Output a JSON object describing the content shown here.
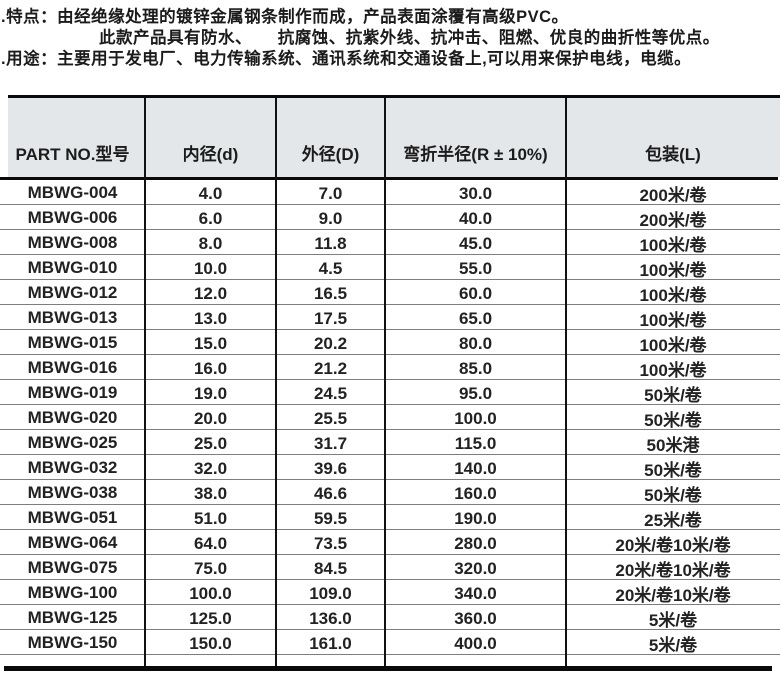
{
  "intro": {
    "line1": ".特点：由经绝缘处理的镀锌金属钢条制作而成，产品表面涂覆有高级PVC。",
    "line2": "此款产品具有防水、　　抗腐蚀、抗紫外线、抗冲击、阻燃、优良的曲折性等优点。",
    "line3": ".用途：主要用于发电厂、电力传输系统、通讯系统和交通设备上,可以用来保护电线，电缆。"
  },
  "table": {
    "headers": [
      "PART NO.型号",
      "内径(d)",
      "外径(D)",
      "弯折半径(R ± 10%)",
      "包装(L)"
    ],
    "rows": [
      [
        "MBWG-004",
        "4.0",
        "7.0",
        "30.0",
        "200米/卷"
      ],
      [
        "MBWG-006",
        "6.0",
        "9.0",
        "40.0",
        "200米/卷"
      ],
      [
        "MBWG-008",
        "8.0",
        "11.8",
        "45.0",
        "100米/卷"
      ],
      [
        "MBWG-010",
        "10.0",
        "4.5",
        "55.0",
        "100米/卷"
      ],
      [
        "MBWG-012",
        "12.0",
        "16.5",
        "60.0",
        "100米/卷"
      ],
      [
        "MBWG-013",
        "13.0",
        "17.5",
        "65.0",
        "100米/卷"
      ],
      [
        "MBWG-015",
        "15.0",
        "20.2",
        "80.0",
        "100米/卷"
      ],
      [
        "MBWG-016",
        "16.0",
        "21.2",
        "85.0",
        "100米/卷"
      ],
      [
        "MBWG-019",
        "19.0",
        "24.5",
        "95.0",
        "50米/卷"
      ],
      [
        "MBWG-020",
        "20.0",
        "25.5",
        "100.0",
        "50米/卷"
      ],
      [
        "MBWG-025",
        "25.0",
        "31.7",
        "115.0",
        "50米港"
      ],
      [
        "MBWG-032",
        "32.0",
        "39.6",
        "140.0",
        "50米/卷"
      ],
      [
        "MBWG-038",
        "38.0",
        "46.6",
        "160.0",
        "50米/卷"
      ],
      [
        "MBWG-051",
        "51.0",
        "59.5",
        "190.0",
        "25米/卷"
      ],
      [
        "MBWG-064",
        "64.0",
        "73.5",
        "280.0",
        "20米/卷10米/卷"
      ],
      [
        "MBWG-075",
        "75.0",
        "84.5",
        "320.0",
        "20米/卷10米/卷"
      ],
      [
        "MBWG-100",
        "100.0",
        "109.0",
        "340.0",
        "20米/卷10米/卷"
      ],
      [
        "MBWG-125",
        "125.0",
        "136.0",
        "360.0",
        "5米/卷"
      ],
      [
        "MBWG-150",
        "150.0",
        "161.0",
        "400.0",
        "5米/卷"
      ]
    ]
  }
}
